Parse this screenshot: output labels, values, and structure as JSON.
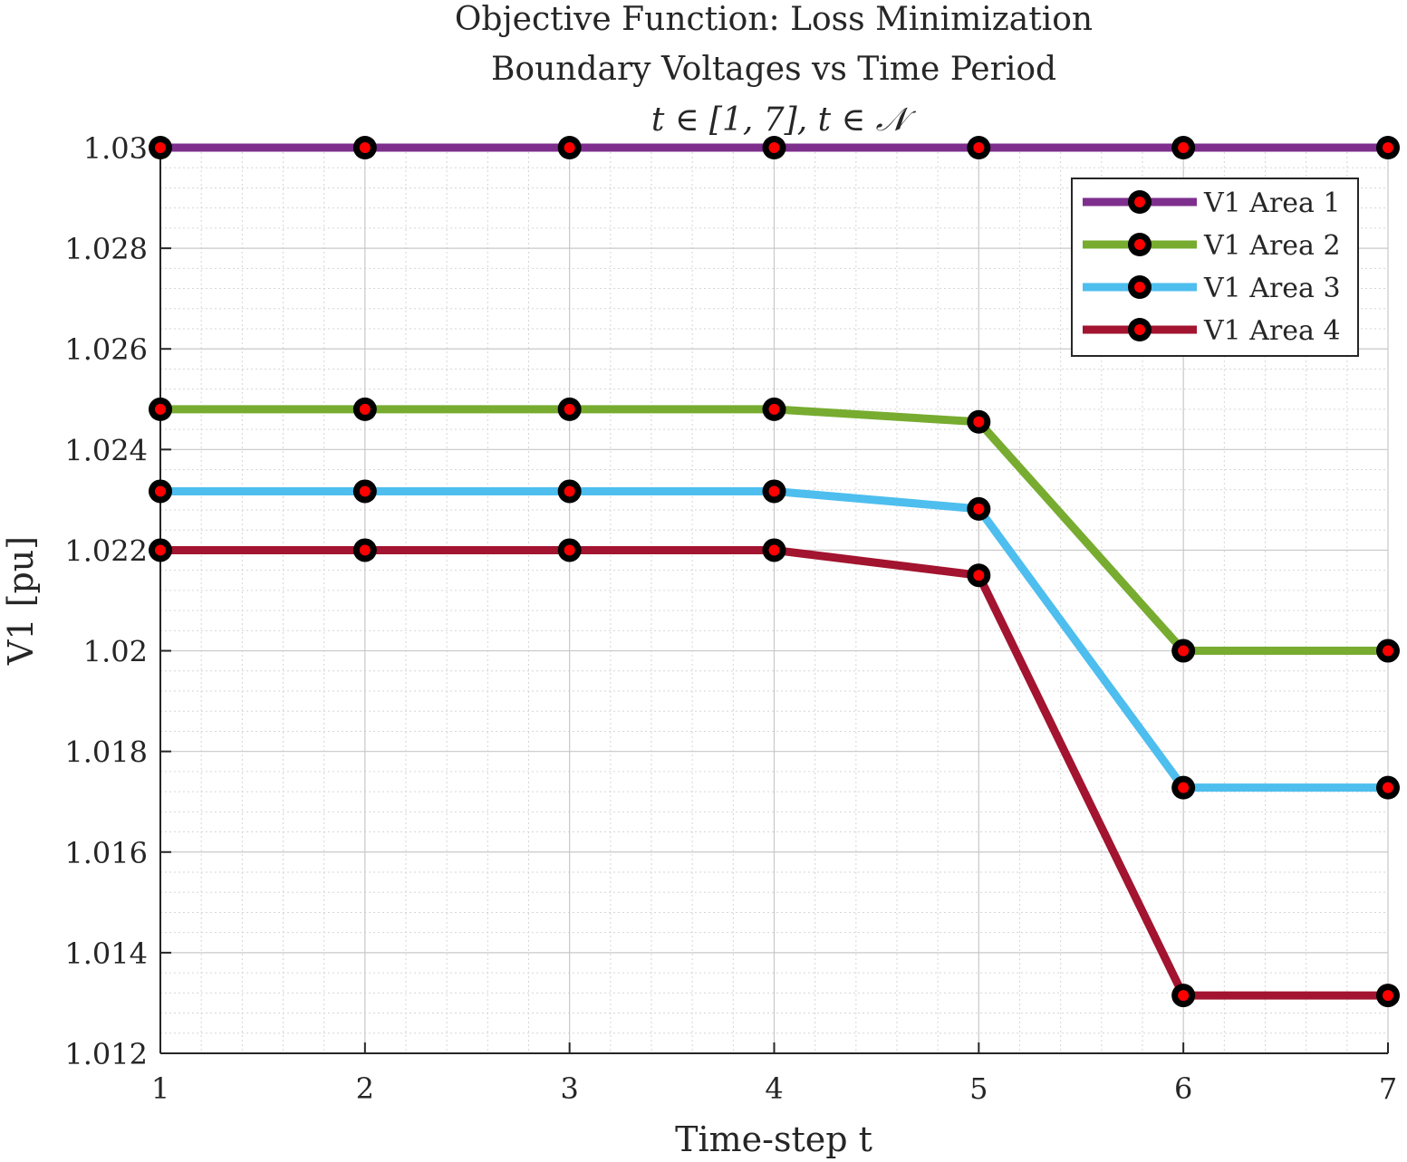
{
  "chart_data": {
    "type": "line",
    "title_lines": [
      "Objective Function: Loss Minimization",
      "Boundary Voltages vs Time Period",
      "t ∈ [1, 7], t ∈ 𝒩"
    ],
    "xlabel": "Time-step t",
    "ylabel": "V1 [pu]",
    "x": [
      1,
      2,
      3,
      4,
      5,
      6,
      7
    ],
    "xlim": [
      1,
      7
    ],
    "ylim": [
      1.012,
      1.03
    ],
    "xticks": [
      1,
      2,
      3,
      4,
      5,
      6,
      7
    ],
    "yticks": [
      1.012,
      1.014,
      1.016,
      1.018,
      1.02,
      1.022,
      1.024,
      1.026,
      1.028,
      1.03
    ],
    "ytick_labels": [
      "1.012",
      "1.014",
      "1.016",
      "1.018",
      "1.02",
      "1.022",
      "1.024",
      "1.026",
      "1.028",
      "1.03"
    ],
    "grid": true,
    "minor_grid": true,
    "legend_position": "top-right",
    "marker": {
      "edge_color": "#000000",
      "face_color": "#ff0000"
    },
    "series": [
      {
        "name": "V1 Area 1",
        "color": "#7e2f8e",
        "values": [
          1.03,
          1.03,
          1.03,
          1.03,
          1.03,
          1.03,
          1.03
        ]
      },
      {
        "name": "V1 Area 2",
        "color": "#77ac30",
        "values": [
          1.0248,
          1.0248,
          1.0248,
          1.0248,
          1.02455,
          1.02,
          1.02
        ]
      },
      {
        "name": "V1 Area 3",
        "color": "#4dbeee",
        "values": [
          1.02317,
          1.02317,
          1.02317,
          1.02317,
          1.02282,
          1.01728,
          1.01728
        ]
      },
      {
        "name": "V1 Area 4",
        "color": "#a2142f",
        "values": [
          1.022,
          1.022,
          1.022,
          1.022,
          1.0215,
          1.01315,
          1.01315
        ]
      }
    ]
  }
}
